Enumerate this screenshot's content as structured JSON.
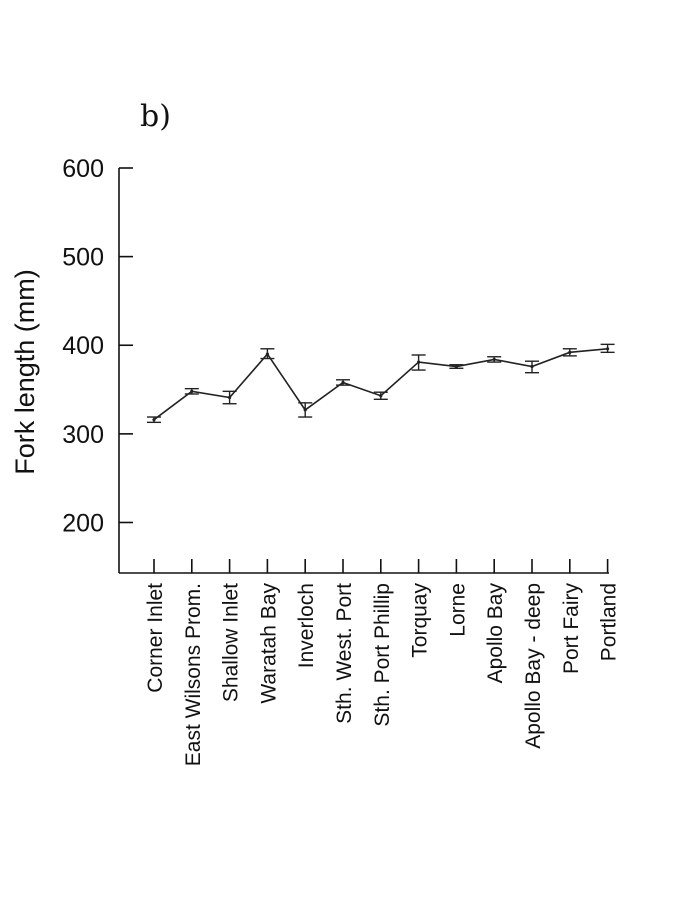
{
  "panel_label": "b)",
  "chart_data": {
    "type": "line",
    "title": "",
    "xlabel": "",
    "ylabel": "Fork length (mm)",
    "ylim": [
      143,
      600
    ],
    "yticks": [
      200,
      300,
      400,
      500,
      600
    ],
    "grid": false,
    "categories": [
      "Corner Inlet",
      "East  Wilsons Prom.",
      "Shallow Inlet",
      "Waratah Bay",
      "Inverloch",
      "Sth. West. Port",
      "Sth. Port Phillip",
      "Torquay",
      "Lorne",
      "Apollo Bay",
      "Apollo Bay - deep",
      "Port Fairy",
      "Portland"
    ],
    "series": [
      {
        "values": [
          316,
          348,
          341,
          390,
          327,
          358,
          343,
          381,
          376,
          384,
          376,
          392,
          396
        ],
        "err_low": [
          313,
          345,
          334,
          385,
          319,
          355,
          339,
          372,
          374,
          381,
          369,
          388,
          392
        ],
        "err_high": [
          319,
          351,
          348,
          396,
          335,
          361,
          347,
          389,
          378,
          387,
          382,
          396,
          401
        ]
      }
    ]
  }
}
